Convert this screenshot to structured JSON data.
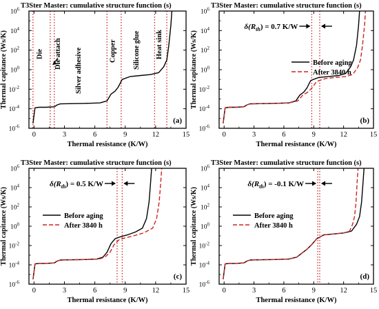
{
  "figure": {
    "colors": {
      "before": "#000000",
      "after": "#cc2222",
      "region": "#cc2222",
      "axis": "#000000"
    }
  },
  "chart_data": [
    {
      "id": "a",
      "type": "line",
      "title": "T3Ster Master: cumulative structure function (s)",
      "xlabel": "Thermal resistance (K/W)",
      "ylabel": "Thermal capitance (Ws/K)",
      "panel_label": "(a)",
      "xlim": [
        -0.5,
        15
      ],
      "ylim_log10": [
        -6,
        6
      ],
      "xticks": [
        0,
        3,
        6,
        9,
        12,
        15
      ],
      "xtick_labels": [
        "0",
        "3",
        "6",
        "9",
        "12",
        "15"
      ],
      "yticks_log10": [
        -6,
        -4,
        -2,
        0,
        2,
        4,
        6
      ],
      "ytick_labels": [
        "10",
        "10",
        "10",
        "10",
        "10",
        "10",
        "10"
      ],
      "ytick_exponents": [
        "-6",
        "-4",
        "-2",
        "0",
        "2",
        "4",
        "6"
      ],
      "series": [
        {
          "key": "before",
          "style": "solid",
          "x": [
            -0.1,
            0.1,
            0.5,
            1.2,
            2.0,
            2.3,
            2.6,
            3.5,
            5.0,
            6.5,
            7.2,
            7.6,
            8.0,
            8.3,
            8.7,
            9.5,
            10.5,
            11.5,
            12.3,
            12.8,
            13.1,
            13.3,
            13.5,
            13.6
          ],
          "log10y": [
            -5.5,
            -3.9,
            -3.85,
            -3.85,
            -3.8,
            -3.6,
            -3.5,
            -3.48,
            -3.45,
            -3.4,
            -3.2,
            -2.5,
            -2.2,
            -1.8,
            -1.0,
            -0.7,
            -0.6,
            -0.5,
            -0.3,
            0.3,
            1.0,
            2.5,
            4.5,
            6.0
          ]
        }
      ],
      "regions": {
        "boundaries_x": [
          -0.1,
          1.6,
          2.0,
          7.2,
          8.6,
          11.9,
          13.1
        ],
        "labels": [
          "Die",
          "Die attach",
          "Silver adhesive",
          "Copper",
          "Silicone glue",
          "Heat sink"
        ]
      }
    },
    {
      "id": "b",
      "type": "line",
      "title": "T3Ster Master: cumulative structure function (s)",
      "xlabel": "Thermal resistance (K/W)",
      "ylabel": "Thermal capitance (Ws/K)",
      "panel_label": "(b)",
      "xlim": [
        -0.5,
        15
      ],
      "ylim_log10": [
        -6,
        6
      ],
      "xticks": [
        0,
        3,
        6,
        9,
        12,
        15
      ],
      "xtick_labels": [
        "0",
        "3",
        "6",
        "9",
        "12",
        "15"
      ],
      "yticks_log10": [
        -6,
        -4,
        -2,
        0,
        2,
        4,
        6
      ],
      "ytick_labels": [
        "10",
        "10",
        "10",
        "10",
        "10",
        "10",
        "10"
      ],
      "ytick_exponents": [
        "-6",
        "-4",
        "-2",
        "0",
        "2",
        "4",
        "6"
      ],
      "annotation_prefix": "δ(R",
      "annotation_sub": "th",
      "annotation_suffix": ") = 0.7 K/W",
      "dotted_x": [
        8.8,
        9.6
      ],
      "legend": {
        "position": "center-right",
        "entries": [
          "Before aging",
          "After 3840 h"
        ]
      },
      "series": [
        {
          "key": "before",
          "name": "Before aging",
          "style": "solid",
          "x": [
            -0.1,
            0.1,
            0.5,
            1.2,
            2.0,
            2.3,
            2.6,
            3.5,
            5.0,
            6.5,
            7.2,
            7.6,
            8.0,
            8.3,
            8.7,
            9.5,
            10.5,
            11.5,
            12.2,
            12.7,
            13.0,
            13.3,
            13.5,
            13.6
          ],
          "log10y": [
            -5.5,
            -3.9,
            -3.85,
            -3.85,
            -3.8,
            -3.6,
            -3.5,
            -3.48,
            -3.45,
            -3.4,
            -3.2,
            -2.6,
            -2.3,
            -1.9,
            -1.1,
            -0.8,
            -0.7,
            -0.6,
            -0.4,
            0.3,
            1.0,
            2.5,
            4.5,
            6.0
          ]
        },
        {
          "key": "after",
          "name": "After 3840 h",
          "style": "dashed",
          "x": [
            -0.1,
            0.1,
            0.5,
            1.2,
            2.0,
            2.3,
            2.6,
            3.5,
            5.0,
            6.5,
            7.4,
            7.9,
            8.4,
            8.8,
            9.3,
            10.2,
            11.2,
            12.2,
            12.9,
            13.4,
            13.7,
            13.9,
            14.1,
            14.2
          ],
          "log10y": [
            -5.5,
            -3.9,
            -3.85,
            -3.85,
            -3.8,
            -3.6,
            -3.5,
            -3.48,
            -3.45,
            -3.4,
            -3.2,
            -2.6,
            -2.3,
            -1.9,
            -1.2,
            -0.9,
            -0.8,
            -0.7,
            -0.5,
            0.2,
            1.0,
            2.5,
            4.5,
            6.0
          ]
        }
      ]
    },
    {
      "id": "c",
      "type": "line",
      "title": "T3Ster Master: cumulative structure function (s)",
      "xlabel": "Thermal resistance (K/W)",
      "ylabel": "Thermal capitance (Ws/K)",
      "panel_label": "(c)",
      "xlim": [
        -0.5,
        15
      ],
      "ylim_log10": [
        -6,
        6
      ],
      "xticks": [
        0,
        3,
        6,
        9,
        12,
        15
      ],
      "xtick_labels": [
        "0",
        "3",
        "6",
        "9",
        "12",
        "15"
      ],
      "yticks_log10": [
        -6,
        -4,
        -2,
        0,
        2,
        4,
        6
      ],
      "ytick_labels": [
        "10",
        "10",
        "10",
        "10",
        "10",
        "10",
        "10"
      ],
      "ytick_exponents": [
        "-6",
        "-4",
        "-2",
        "0",
        "2",
        "4",
        "6"
      ],
      "annotation_prefix": "δ(R",
      "annotation_sub": "th",
      "annotation_suffix": ") = 0.5 K/W",
      "dotted_x": [
        8.2,
        8.7
      ],
      "legend": {
        "position": "center-left",
        "entries": [
          "Before aging",
          "After 3840 h"
        ]
      },
      "series": [
        {
          "key": "before",
          "name": "Before aging",
          "style": "solid",
          "x": [
            -0.1,
            0.1,
            0.5,
            1.2,
            2.0,
            2.3,
            2.6,
            3.5,
            5.0,
            6.2,
            6.8,
            7.2,
            7.6,
            8.0,
            8.5,
            9.2,
            10.0,
            10.7,
            11.1,
            11.35,
            11.5,
            11.6
          ],
          "log10y": [
            -5.5,
            -3.9,
            -3.85,
            -3.85,
            -3.8,
            -3.6,
            -3.5,
            -3.48,
            -3.45,
            -3.4,
            -3.2,
            -2.7,
            -1.8,
            -1.3,
            -1.1,
            -0.9,
            -0.6,
            -0.2,
            0.8,
            2.5,
            4.5,
            6.0
          ]
        },
        {
          "key": "after",
          "name": "After 3840 h",
          "style": "dashed",
          "x": [
            -0.1,
            0.1,
            0.5,
            1.2,
            2.0,
            2.3,
            2.6,
            3.5,
            5.0,
            6.4,
            7.0,
            7.5,
            7.9,
            8.4,
            9.0,
            9.8,
            10.8,
            11.7,
            12.1,
            12.35,
            12.5,
            12.6
          ],
          "log10y": [
            -5.5,
            -3.9,
            -3.85,
            -3.85,
            -3.8,
            -3.6,
            -3.5,
            -3.48,
            -3.45,
            -3.4,
            -3.2,
            -2.7,
            -1.9,
            -1.4,
            -1.2,
            -1.0,
            -0.7,
            -0.2,
            0.8,
            2.5,
            4.5,
            6.0
          ]
        }
      ]
    },
    {
      "id": "d",
      "type": "line",
      "title": "T3Ster Master: cumulative structure function (s)",
      "xlabel": "Thermal resistance (K/W)",
      "ylabel": "Thermal capitance (Ws/K)",
      "panel_label": "(d)",
      "xlim": [
        -0.5,
        15
      ],
      "ylim_log10": [
        -6,
        6
      ],
      "xticks": [
        0,
        3,
        6,
        9,
        12,
        15
      ],
      "xtick_labels": [
        "0",
        "3",
        "6",
        "9",
        "12",
        "15"
      ],
      "yticks_log10": [
        -6,
        -4,
        -2,
        0,
        2,
        4,
        6
      ],
      "ytick_labels": [
        "10",
        "10",
        "10",
        "10",
        "10",
        "10",
        "10"
      ],
      "ytick_exponents": [
        "-6",
        "-4",
        "-2",
        "0",
        "2",
        "4",
        "6"
      ],
      "annotation_prefix": "δ(R",
      "annotation_sub": "th",
      "annotation_suffix": ") = -0.1 K/W",
      "dotted_x": [
        9.4,
        9.6
      ],
      "legend": {
        "position": "center-left",
        "entries": [
          "Before aging",
          "After 3840 h"
        ]
      },
      "series": [
        {
          "key": "before",
          "name": "Before aging",
          "style": "solid",
          "x": [
            -0.1,
            0.1,
            0.5,
            1.2,
            2.0,
            2.3,
            2.6,
            3.5,
            5.0,
            6.5,
            7.3,
            7.8,
            8.3,
            8.8,
            9.3,
            10.0,
            11.0,
            12.0,
            12.8,
            13.3,
            13.6,
            13.8,
            13.95,
            14.05
          ],
          "log10y": [
            -5.5,
            -3.9,
            -3.85,
            -3.85,
            -3.8,
            -3.6,
            -3.5,
            -3.48,
            -3.45,
            -3.4,
            -3.2,
            -2.8,
            -2.4,
            -1.9,
            -1.3,
            -0.9,
            -0.8,
            -0.7,
            -0.5,
            0.2,
            1.0,
            2.5,
            4.5,
            6.0
          ]
        },
        {
          "key": "after",
          "name": "After 3840 h",
          "style": "dashed",
          "x": [
            -0.1,
            0.1,
            0.5,
            1.2,
            2.0,
            2.3,
            2.6,
            3.5,
            5.0,
            6.5,
            7.3,
            7.8,
            8.3,
            8.8,
            9.3,
            10.0,
            11.0,
            12.0,
            12.6,
            12.9,
            13.1,
            13.25,
            13.35,
            13.45
          ],
          "log10y": [
            -5.5,
            -3.9,
            -3.85,
            -3.85,
            -3.8,
            -3.6,
            -3.5,
            -3.48,
            -3.45,
            -3.4,
            -3.2,
            -2.8,
            -2.4,
            -1.9,
            -1.3,
            -0.9,
            -0.8,
            -0.7,
            -0.5,
            0.2,
            1.0,
            2.5,
            4.5,
            6.0
          ]
        }
      ]
    }
  ]
}
